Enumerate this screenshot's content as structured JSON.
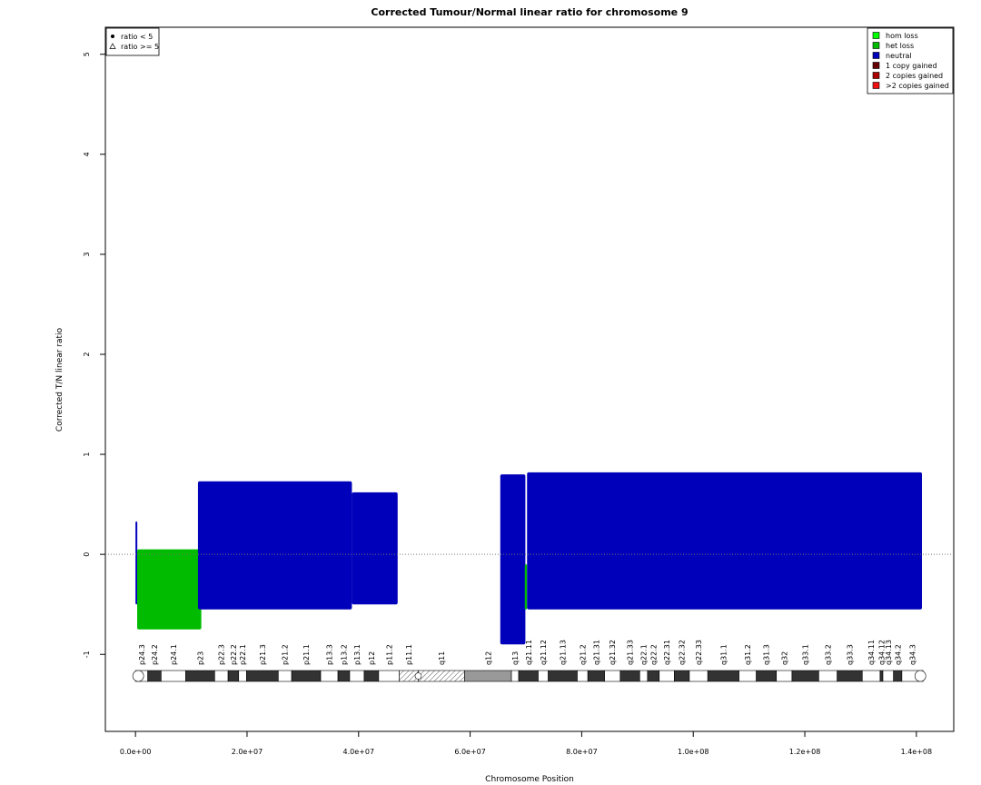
{
  "chart_data": {
    "type": "scatter",
    "title": "Corrected Tumour/Normal linear ratio for chromosome  9",
    "x_label": "Chromosome Position",
    "y_label": "Corrected T/N linear ratio",
    "xlim": [
      -5400000,
      146700000
    ],
    "ylim": [
      -1.77,
      5.27
    ],
    "xticks": [
      {
        "value": 0,
        "label": "0.0e+00"
      },
      {
        "value": 20000000,
        "label": "2.0e+07"
      },
      {
        "value": 40000000,
        "label": "4.0e+07"
      },
      {
        "value": 60000000,
        "label": "6.0e+07"
      },
      {
        "value": 80000000,
        "label": "8.0e+07"
      },
      {
        "value": 100000000,
        "label": "1.0e+08"
      },
      {
        "value": 120000000,
        "label": "1.2e+08"
      },
      {
        "value": 140000000,
        "label": "1.4e+08"
      }
    ],
    "yticks": [
      -1,
      0,
      1,
      2,
      3,
      4,
      5
    ],
    "hline": 0,
    "legend": {
      "corner": "top-right",
      "series": [
        {
          "name": "hom loss",
          "color": "#00ff00"
        },
        {
          "name": "het loss",
          "color": "#00bb00"
        },
        {
          "name": "neutral",
          "color": "#0000bb"
        },
        {
          "name": "1 copy gained",
          "color": "#660000"
        },
        {
          "name": "2 copies gained",
          "color": "#aa0000"
        },
        {
          "name": ">2 copies gained",
          "color": "#ee1111"
        }
      ]
    },
    "shape_legend": {
      "corner": "top-left",
      "items": [
        "ratio < 5",
        "ratio >= 5"
      ]
    },
    "segments": [
      {
        "start": 0,
        "end": 300000,
        "ymin": -0.5,
        "ymax": 0.33,
        "color": "#0000bb"
      },
      {
        "start": 300000,
        "end": 11800000,
        "ymin": -0.75,
        "ymax": 0.05,
        "color": "#00bb00"
      },
      {
        "start": 11200000,
        "end": 38800000,
        "ymin": -0.55,
        "ymax": 0.73,
        "color": "#0000bb"
      },
      {
        "start": 38800000,
        "end": 47000000,
        "ymin": -0.5,
        "ymax": 0.62,
        "color": "#0000bb"
      },
      {
        "start": 65400000,
        "end": 69900000,
        "ymin": -0.9,
        "ymax": 0.8,
        "color": "#0000bb"
      },
      {
        "start": 69800000,
        "end": 70200000,
        "ymin": -0.55,
        "ymax": -0.1,
        "color": "#00bb00"
      },
      {
        "start": 70200000,
        "end": 141000000,
        "ymin": -0.55,
        "ymax": 0.82,
        "color": "#0000bb"
      }
    ],
    "ideogram": {
      "bands": [
        {
          "name": "p24.3",
          "start": 0,
          "end": 2200000,
          "stain": "gneg"
        },
        {
          "name": "p24.2",
          "start": 2200000,
          "end": 4600000,
          "stain": "gpos"
        },
        {
          "name": "p24.1",
          "start": 4600000,
          "end": 9000000,
          "stain": "gneg"
        },
        {
          "name": "p23",
          "start": 9000000,
          "end": 14200000,
          "stain": "gpos"
        },
        {
          "name": "p22.3",
          "start": 14200000,
          "end": 16600000,
          "stain": "gneg"
        },
        {
          "name": "p22.2",
          "start": 16600000,
          "end": 18500000,
          "stain": "gpos"
        },
        {
          "name": "p22.1",
          "start": 18500000,
          "end": 19900000,
          "stain": "gneg"
        },
        {
          "name": "p21.3",
          "start": 19900000,
          "end": 25600000,
          "stain": "gpos"
        },
        {
          "name": "p21.2",
          "start": 25600000,
          "end": 28000000,
          "stain": "gneg"
        },
        {
          "name": "p21.1",
          "start": 28000000,
          "end": 33200000,
          "stain": "gpos"
        },
        {
          "name": "p13.3",
          "start": 33200000,
          "end": 36300000,
          "stain": "gneg"
        },
        {
          "name": "p13.2",
          "start": 36300000,
          "end": 38400000,
          "stain": "gpos"
        },
        {
          "name": "p13.1",
          "start": 38400000,
          "end": 41000000,
          "stain": "gneg"
        },
        {
          "name": "p12",
          "start": 41000000,
          "end": 43600000,
          "stain": "gpos"
        },
        {
          "name": "p11.2",
          "start": 43600000,
          "end": 47300000,
          "stain": "gneg"
        },
        {
          "name": "p11.1",
          "start": 47300000,
          "end": 50700000,
          "stain": "acen"
        },
        {
          "name": "q11",
          "start": 50700000,
          "end": 59000000,
          "stain": "acen"
        },
        {
          "name": "q12",
          "start": 59000000,
          "end": 67400000,
          "stain": "gvar"
        },
        {
          "name": "q13",
          "start": 67400000,
          "end": 68700000,
          "stain": "gneg"
        },
        {
          "name": "q21.11",
          "start": 68700000,
          "end": 72200000,
          "stain": "gpos"
        },
        {
          "name": "q21.12",
          "start": 72200000,
          "end": 74000000,
          "stain": "gneg"
        },
        {
          "name": "q21.13",
          "start": 74000000,
          "end": 79200000,
          "stain": "gpos"
        },
        {
          "name": "q21.2",
          "start": 79200000,
          "end": 81100000,
          "stain": "gneg"
        },
        {
          "name": "q21.31",
          "start": 81100000,
          "end": 84100000,
          "stain": "gpos"
        },
        {
          "name": "q21.32",
          "start": 84100000,
          "end": 86900000,
          "stain": "gneg"
        },
        {
          "name": "q21.33",
          "start": 86900000,
          "end": 90400000,
          "stain": "gpos"
        },
        {
          "name": "q22.1",
          "start": 90400000,
          "end": 91800000,
          "stain": "gneg"
        },
        {
          "name": "q22.2",
          "start": 91800000,
          "end": 93900000,
          "stain": "gpos"
        },
        {
          "name": "q22.31",
          "start": 93900000,
          "end": 96600000,
          "stain": "gneg"
        },
        {
          "name": "q22.32",
          "start": 96600000,
          "end": 99300000,
          "stain": "gpos"
        },
        {
          "name": "q22.33",
          "start": 99300000,
          "end": 102600000,
          "stain": "gneg"
        },
        {
          "name": "q31.1",
          "start": 102600000,
          "end": 108200000,
          "stain": "gpos"
        },
        {
          "name": "q31.2",
          "start": 108200000,
          "end": 111300000,
          "stain": "gneg"
        },
        {
          "name": "q31.3",
          "start": 111300000,
          "end": 114900000,
          "stain": "gpos"
        },
        {
          "name": "q32",
          "start": 114900000,
          "end": 117700000,
          "stain": "gneg"
        },
        {
          "name": "q33.1",
          "start": 117700000,
          "end": 122500000,
          "stain": "gpos"
        },
        {
          "name": "q33.2",
          "start": 122500000,
          "end": 125800000,
          "stain": "gneg"
        },
        {
          "name": "q33.3",
          "start": 125800000,
          "end": 130300000,
          "stain": "gpos"
        },
        {
          "name": "q34.11",
          "start": 130300000,
          "end": 133500000,
          "stain": "gneg"
        },
        {
          "name": "q34.12",
          "start": 133500000,
          "end": 134000000,
          "stain": "gpos"
        },
        {
          "name": "q34.13",
          "start": 134000000,
          "end": 135900000,
          "stain": "gneg"
        },
        {
          "name": "q34.2",
          "start": 135900000,
          "end": 137400000,
          "stain": "gpos"
        },
        {
          "name": "q34.3",
          "start": 137400000,
          "end": 141200000,
          "stain": "gneg"
        }
      ]
    }
  }
}
